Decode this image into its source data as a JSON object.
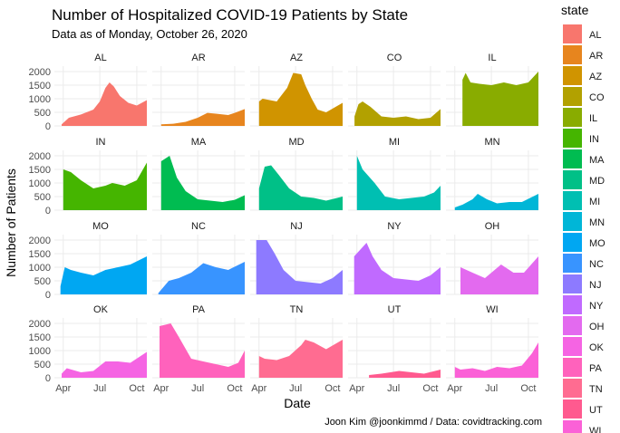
{
  "chart_data": {
    "type": "area",
    "title": "Number of Hospitalized COVID-19 Patients by State",
    "subtitle": "Data as of Monday, October 26, 2020",
    "caption": "Joon Kim @joonkimmd / Data: covidtracking.com",
    "xlabel": "Date",
    "ylabel": "Number of Patients",
    "legend_title": "state",
    "legend_position": "right",
    "grid": true,
    "x_range": [
      "2020-03-10",
      "2020-10-26"
    ],
    "ylim": [
      0,
      2200
    ],
    "x_ticks": [
      {
        "label": "Apr",
        "date": "2020-04-01"
      },
      {
        "label": "Jul",
        "date": "2020-07-01"
      },
      {
        "label": "Oct",
        "date": "2020-10-01"
      }
    ],
    "y_ticks": [
      0,
      500,
      1000,
      1500,
      2000
    ],
    "series": [
      {
        "name": "AL",
        "color": "#F8766D",
        "points": [
          [
            "2020-03-28",
            60
          ],
          [
            "2020-04-15",
            300
          ],
          [
            "2020-05-15",
            420
          ],
          [
            "2020-06-15",
            600
          ],
          [
            "2020-07-01",
            900
          ],
          [
            "2020-07-15",
            1400
          ],
          [
            "2020-07-25",
            1600
          ],
          [
            "2020-08-05",
            1450
          ],
          [
            "2020-08-20",
            1100
          ],
          [
            "2020-09-10",
            850
          ],
          [
            "2020-10-01",
            750
          ],
          [
            "2020-10-26",
            950
          ]
        ]
      },
      {
        "name": "AR",
        "color": "#E7851E",
        "points": [
          [
            "2020-04-01",
            60
          ],
          [
            "2020-05-01",
            80
          ],
          [
            "2020-06-01",
            150
          ],
          [
            "2020-07-01",
            300
          ],
          [
            "2020-07-25",
            480
          ],
          [
            "2020-08-15",
            450
          ],
          [
            "2020-09-15",
            400
          ],
          [
            "2020-10-01",
            480
          ],
          [
            "2020-10-26",
            620
          ]
        ]
      },
      {
        "name": "AZ",
        "color": "#D09400",
        "points": [
          [
            "2020-04-01",
            900
          ],
          [
            "2020-04-10",
            1000
          ],
          [
            "2020-05-15",
            900
          ],
          [
            "2020-06-10",
            1400
          ],
          [
            "2020-06-25",
            1950
          ],
          [
            "2020-07-15",
            1900
          ],
          [
            "2020-07-25",
            1500
          ],
          [
            "2020-08-10",
            1000
          ],
          [
            "2020-08-25",
            600
          ],
          [
            "2020-09-15",
            500
          ],
          [
            "2020-10-26",
            850
          ]
        ]
      },
      {
        "name": "CO",
        "color": "#B2A100",
        "points": [
          [
            "2020-03-26",
            350
          ],
          [
            "2020-04-05",
            800
          ],
          [
            "2020-04-15",
            900
          ],
          [
            "2020-05-05",
            700
          ],
          [
            "2020-06-01",
            350
          ],
          [
            "2020-07-01",
            300
          ],
          [
            "2020-08-01",
            350
          ],
          [
            "2020-09-01",
            250
          ],
          [
            "2020-10-01",
            300
          ],
          [
            "2020-10-26",
            620
          ]
        ]
      },
      {
        "name": "IL",
        "color": "#89AC00",
        "points": [
          [
            "2020-04-20",
            1700
          ],
          [
            "2020-04-28",
            1950
          ],
          [
            "2020-05-10",
            1600
          ],
          [
            "2020-06-01",
            1550
          ],
          [
            "2020-07-01",
            1500
          ],
          [
            "2020-08-01",
            1600
          ],
          [
            "2020-09-01",
            1500
          ],
          [
            "2020-10-01",
            1600
          ],
          [
            "2020-10-26",
            2000
          ]
        ]
      },
      {
        "name": "IN",
        "color": "#45B500",
        "points": [
          [
            "2020-04-01",
            1500
          ],
          [
            "2020-04-20",
            1400
          ],
          [
            "2020-05-15",
            1100
          ],
          [
            "2020-06-15",
            800
          ],
          [
            "2020-07-15",
            900
          ],
          [
            "2020-08-01",
            1000
          ],
          [
            "2020-09-01",
            900
          ],
          [
            "2020-10-01",
            1100
          ],
          [
            "2020-10-26",
            1750
          ]
        ]
      },
      {
        "name": "MA",
        "color": "#00BC51",
        "points": [
          [
            "2020-04-01",
            1800
          ],
          [
            "2020-04-22",
            2000
          ],
          [
            "2020-05-10",
            1200
          ],
          [
            "2020-06-01",
            700
          ],
          [
            "2020-07-01",
            400
          ],
          [
            "2020-08-01",
            350
          ],
          [
            "2020-09-01",
            300
          ],
          [
            "2020-10-01",
            380
          ],
          [
            "2020-10-26",
            550
          ]
        ]
      },
      {
        "name": "MD",
        "color": "#00C087",
        "points": [
          [
            "2020-04-01",
            800
          ],
          [
            "2020-04-15",
            1600
          ],
          [
            "2020-05-01",
            1650
          ],
          [
            "2020-05-20",
            1300
          ],
          [
            "2020-06-15",
            800
          ],
          [
            "2020-07-15",
            500
          ],
          [
            "2020-08-15",
            450
          ],
          [
            "2020-09-15",
            350
          ],
          [
            "2020-10-26",
            500
          ]
        ]
      },
      {
        "name": "MI",
        "color": "#00BFB2",
        "points": [
          [
            "2020-04-01",
            2000
          ],
          [
            "2020-04-15",
            1500
          ],
          [
            "2020-05-15",
            1000
          ],
          [
            "2020-06-10",
            500
          ],
          [
            "2020-07-15",
            400
          ],
          [
            "2020-08-15",
            450
          ],
          [
            "2020-09-15",
            500
          ],
          [
            "2020-10-10",
            650
          ],
          [
            "2020-10-26",
            900
          ]
        ]
      },
      {
        "name": "MN",
        "color": "#00B6D7",
        "points": [
          [
            "2020-04-01",
            100
          ],
          [
            "2020-04-20",
            200
          ],
          [
            "2020-05-15",
            400
          ],
          [
            "2020-05-28",
            600
          ],
          [
            "2020-06-20",
            400
          ],
          [
            "2020-07-15",
            250
          ],
          [
            "2020-08-15",
            300
          ],
          [
            "2020-09-15",
            300
          ],
          [
            "2020-10-26",
            600
          ]
        ]
      },
      {
        "name": "MO",
        "color": "#00A7F2",
        "points": [
          [
            "2020-03-25",
            300
          ],
          [
            "2020-04-05",
            1000
          ],
          [
            "2020-04-20",
            900
          ],
          [
            "2020-05-15",
            800
          ],
          [
            "2020-06-15",
            700
          ],
          [
            "2020-07-15",
            900
          ],
          [
            "2020-08-15",
            1000
          ],
          [
            "2020-09-15",
            1100
          ],
          [
            "2020-10-26",
            1400
          ]
        ]
      },
      {
        "name": "NC",
        "color": "#3894FF",
        "points": [
          [
            "2020-03-25",
            50
          ],
          [
            "2020-04-20",
            500
          ],
          [
            "2020-05-15",
            600
          ],
          [
            "2020-06-15",
            800
          ],
          [
            "2020-07-15",
            1150
          ],
          [
            "2020-08-15",
            1000
          ],
          [
            "2020-09-15",
            900
          ],
          [
            "2020-10-26",
            1200
          ]
        ]
      },
      {
        "name": "NJ",
        "color": "#8D7AFF",
        "points": [
          [
            "2020-03-25",
            2000
          ],
          [
            "2020-04-20",
            2000
          ],
          [
            "2020-05-10",
            1500
          ],
          [
            "2020-06-01",
            900
          ],
          [
            "2020-07-01",
            500
          ],
          [
            "2020-08-01",
            450
          ],
          [
            "2020-09-01",
            400
          ],
          [
            "2020-10-01",
            600
          ],
          [
            "2020-10-26",
            900
          ]
        ]
      },
      {
        "name": "NY",
        "color": "#C06AFF",
        "points": [
          [
            "2020-03-25",
            1400
          ],
          [
            "2020-04-25",
            1900
          ],
          [
            "2020-05-10",
            1400
          ],
          [
            "2020-06-01",
            900
          ],
          [
            "2020-07-01",
            600
          ],
          [
            "2020-08-01",
            550
          ],
          [
            "2020-09-01",
            500
          ],
          [
            "2020-10-01",
            700
          ],
          [
            "2020-10-26",
            1000
          ]
        ]
      },
      {
        "name": "OH",
        "color": "#E36AEF",
        "points": [
          [
            "2020-04-15",
            1000
          ],
          [
            "2020-05-15",
            800
          ],
          [
            "2020-06-15",
            600
          ],
          [
            "2020-07-25",
            1100
          ],
          [
            "2020-08-25",
            800
          ],
          [
            "2020-09-20",
            800
          ],
          [
            "2020-10-26",
            1400
          ]
        ]
      },
      {
        "name": "OK",
        "color": "#F564E3",
        "points": [
          [
            "2020-03-28",
            150
          ],
          [
            "2020-04-10",
            350
          ],
          [
            "2020-05-15",
            200
          ],
          [
            "2020-06-15",
            250
          ],
          [
            "2020-07-15",
            600
          ],
          [
            "2020-08-15",
            600
          ],
          [
            "2020-09-15",
            550
          ],
          [
            "2020-10-26",
            950
          ]
        ]
      },
      {
        "name": "PA",
        "color": "#FF62BC",
        "points": [
          [
            "2020-03-28",
            1900
          ],
          [
            "2020-04-25",
            2000
          ],
          [
            "2020-05-15",
            1500
          ],
          [
            "2020-06-15",
            700
          ],
          [
            "2020-07-15",
            600
          ],
          [
            "2020-08-15",
            500
          ],
          [
            "2020-09-15",
            400
          ],
          [
            "2020-10-10",
            550
          ],
          [
            "2020-10-26",
            1000
          ]
        ]
      },
      {
        "name": "TN",
        "color": "#FF6C91",
        "points": [
          [
            "2020-04-01",
            800
          ],
          [
            "2020-04-15",
            700
          ],
          [
            "2020-05-15",
            650
          ],
          [
            "2020-06-15",
            800
          ],
          [
            "2020-07-15",
            1200
          ],
          [
            "2020-07-25",
            1400
          ],
          [
            "2020-08-15",
            1300
          ],
          [
            "2020-09-15",
            1050
          ],
          [
            "2020-10-26",
            1400
          ]
        ]
      },
      {
        "name": "UT",
        "color": "#FF5A8F",
        "points": [
          [
            "2020-05-01",
            100
          ],
          [
            "2020-06-01",
            150
          ],
          [
            "2020-07-15",
            250
          ],
          [
            "2020-08-15",
            200
          ],
          [
            "2020-09-15",
            150
          ],
          [
            "2020-10-26",
            300
          ]
        ]
      },
      {
        "name": "WI",
        "color": "#FB61D7",
        "points": [
          [
            "2020-04-01",
            400
          ],
          [
            "2020-04-15",
            300
          ],
          [
            "2020-05-15",
            350
          ],
          [
            "2020-06-15",
            250
          ],
          [
            "2020-07-15",
            400
          ],
          [
            "2020-08-15",
            350
          ],
          [
            "2020-09-15",
            450
          ],
          [
            "2020-10-10",
            900
          ],
          [
            "2020-10-26",
            1300
          ]
        ]
      }
    ]
  }
}
